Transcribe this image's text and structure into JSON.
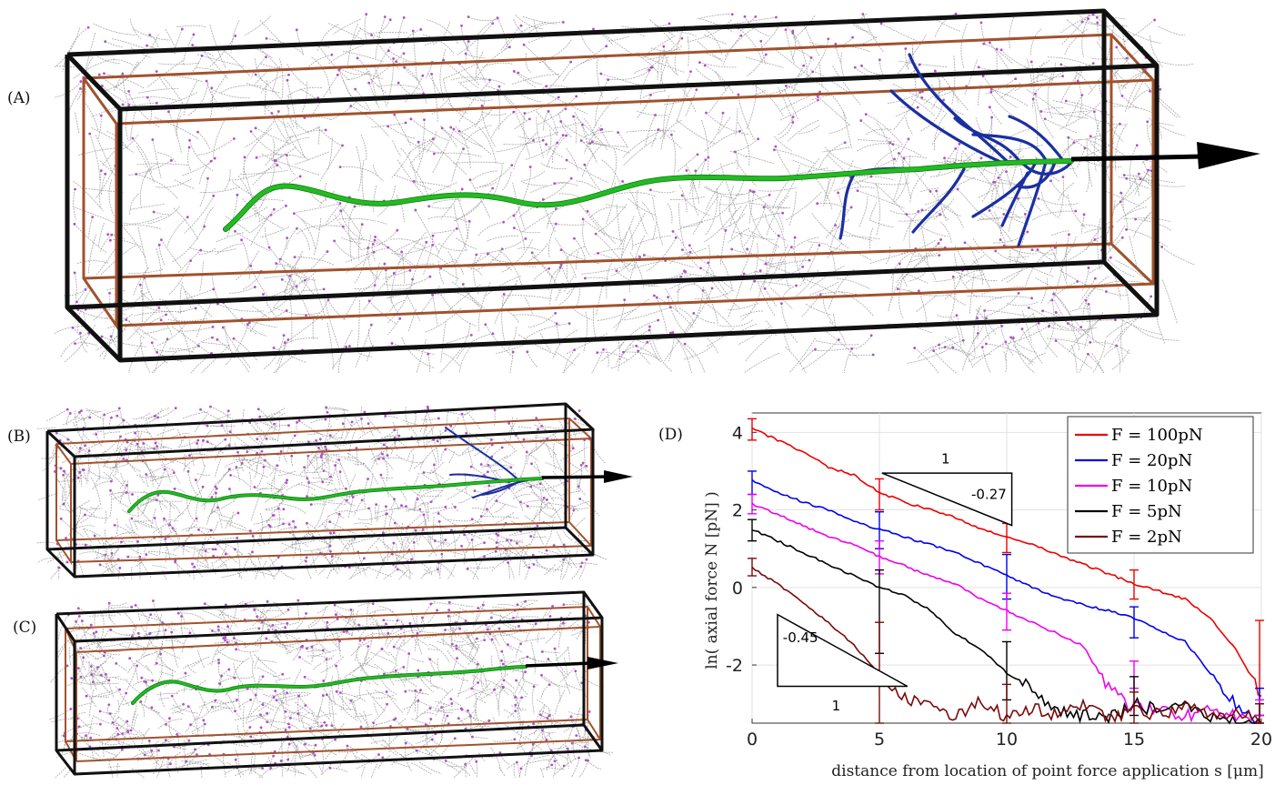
{
  "panels": {
    "a_label": "(A)",
    "b_label": "(B)",
    "c_label": "(C)",
    "d_label": "(D)"
  },
  "colors": {
    "network": "#8a8a8a",
    "crosslink": "#b050c8",
    "outer_box": "#111111",
    "inner_box": "#a0522d",
    "filament": "#22bb22",
    "branch": "#1a2fa0",
    "arrow": "#000000"
  },
  "chart_data": {
    "type": "line",
    "xlabel": "distance from location of point force application s [μm]",
    "ylabel": "ln( axial force N [pN] )",
    "xlim": [
      0,
      20
    ],
    "ylim": [
      -3.5,
      4.5
    ],
    "xticks": [
      0,
      5,
      10,
      15,
      20
    ],
    "yticks": [
      -2,
      0,
      2,
      4
    ],
    "grid": true,
    "legend_position": "top-right",
    "series": [
      {
        "name": "F = 100pN",
        "color": "#ee0000",
        "x": [
          0,
          1,
          2,
          3,
          4,
          5,
          6,
          7,
          8,
          9,
          10,
          11,
          12,
          13,
          14,
          15,
          16,
          17,
          18,
          19,
          20
        ],
        "values": [
          4.1,
          3.8,
          3.5,
          3.1,
          2.9,
          2.45,
          2.2,
          2.0,
          1.8,
          1.5,
          1.3,
          1.1,
          0.85,
          0.6,
          0.35,
          0.1,
          -0.1,
          -0.3,
          -0.8,
          -1.6,
          -2.8
        ]
      },
      {
        "name": "F = 20pN",
        "color": "#0000ee",
        "x": [
          0,
          1,
          2,
          3,
          4,
          5,
          6,
          7,
          8,
          9,
          10,
          11,
          12,
          13,
          14,
          15,
          16,
          17,
          18,
          19,
          20
        ],
        "values": [
          2.75,
          2.45,
          2.2,
          2.0,
          1.7,
          1.5,
          1.3,
          1.1,
          0.9,
          0.6,
          0.3,
          0.0,
          -0.25,
          -0.45,
          -0.6,
          -0.8,
          -1.1,
          -1.4,
          -2.2,
          -3.0,
          -3.5
        ]
      },
      {
        "name": "F = 10pN",
        "color": "#ee00ee",
        "x": [
          0,
          1,
          2,
          3,
          4,
          5,
          6,
          7,
          8,
          9,
          10,
          11,
          12,
          13,
          14,
          15,
          16,
          17,
          18,
          19,
          20
        ],
        "values": [
          2.15,
          1.9,
          1.6,
          1.3,
          1.1,
          0.8,
          0.55,
          0.3,
          0.1,
          -0.3,
          -0.6,
          -0.9,
          -1.2,
          -1.5,
          -2.6,
          -3.1,
          -3.2,
          -3.3,
          -3.2,
          -3.3,
          -3.5
        ]
      },
      {
        "name": "F = 5pN",
        "color": "#000000",
        "x": [
          0,
          1,
          2,
          3,
          4,
          5,
          6,
          7,
          8,
          9,
          10,
          11,
          12,
          13,
          14,
          15,
          16,
          17,
          18,
          19,
          20
        ],
        "values": [
          1.5,
          1.2,
          0.9,
          0.6,
          0.3,
          0.0,
          -0.2,
          -0.6,
          -1.2,
          -1.6,
          -2.2,
          -2.6,
          -3.2,
          -3.3,
          -3.4,
          -3.0,
          -3.2,
          -3.0,
          -3.3,
          -3.5,
          -3.5
        ]
      },
      {
        "name": "F = 2pN",
        "color": "#7a0a0a",
        "x": [
          0,
          1,
          2,
          3,
          4,
          5,
          6,
          7,
          8,
          9,
          10,
          11,
          12,
          13,
          14,
          15,
          16,
          17,
          18,
          19,
          20
        ],
        "values": [
          0.5,
          0.1,
          -0.4,
          -0.9,
          -1.5,
          -2.2,
          -2.8,
          -3.1,
          -3.3,
          -2.9,
          -3.4,
          -3.1,
          -3.3,
          -3.0,
          -3.4,
          -3.1,
          -3.3,
          -3.0,
          -3.4,
          -3.2,
          -3.5
        ]
      }
    ],
    "error_bars": [
      {
        "series": "F = 100pN",
        "x": [
          0,
          5,
          10,
          15,
          20
        ],
        "low": [
          3.8,
          2.0,
          0.9,
          -0.3,
          -3.3
        ],
        "high": [
          4.35,
          2.8,
          1.65,
          0.45,
          -0.85
        ]
      },
      {
        "series": "F = 20pN",
        "x": [
          0,
          5,
          10,
          15,
          20
        ],
        "low": [
          2.4,
          1.0,
          -0.3,
          -1.3,
          -3.3
        ],
        "high": [
          3.0,
          1.95,
          0.85,
          -0.5,
          -2.6
        ]
      },
      {
        "series": "F = 10pN",
        "x": [
          0,
          5,
          10,
          15,
          20
        ],
        "low": [
          1.9,
          0.35,
          -1.1,
          -2.6,
          -3.3
        ],
        "high": [
          2.4,
          1.2,
          -0.15,
          -1.9,
          -2.9
        ]
      },
      {
        "series": "F = 5pN",
        "x": [
          0,
          5,
          10,
          15,
          20
        ],
        "low": [
          1.2,
          -1.7,
          -2.9,
          -3.3,
          -3.5
        ],
        "high": [
          1.75,
          0.45,
          -1.4,
          -2.3,
          -3.0
        ]
      },
      {
        "series": "F = 2pN",
        "x": [
          0,
          5,
          10,
          15,
          20
        ],
        "low": [
          0.3,
          -3.5,
          -3.5,
          -3.5,
          -3.5
        ],
        "high": [
          0.75,
          -0.9,
          -2.5,
          -2.7,
          -3.0
        ]
      }
    ],
    "slope_triangles": [
      {
        "run": "1",
        "slope": "-0.27"
      },
      {
        "run": "1",
        "slope": "-0.45"
      }
    ]
  }
}
